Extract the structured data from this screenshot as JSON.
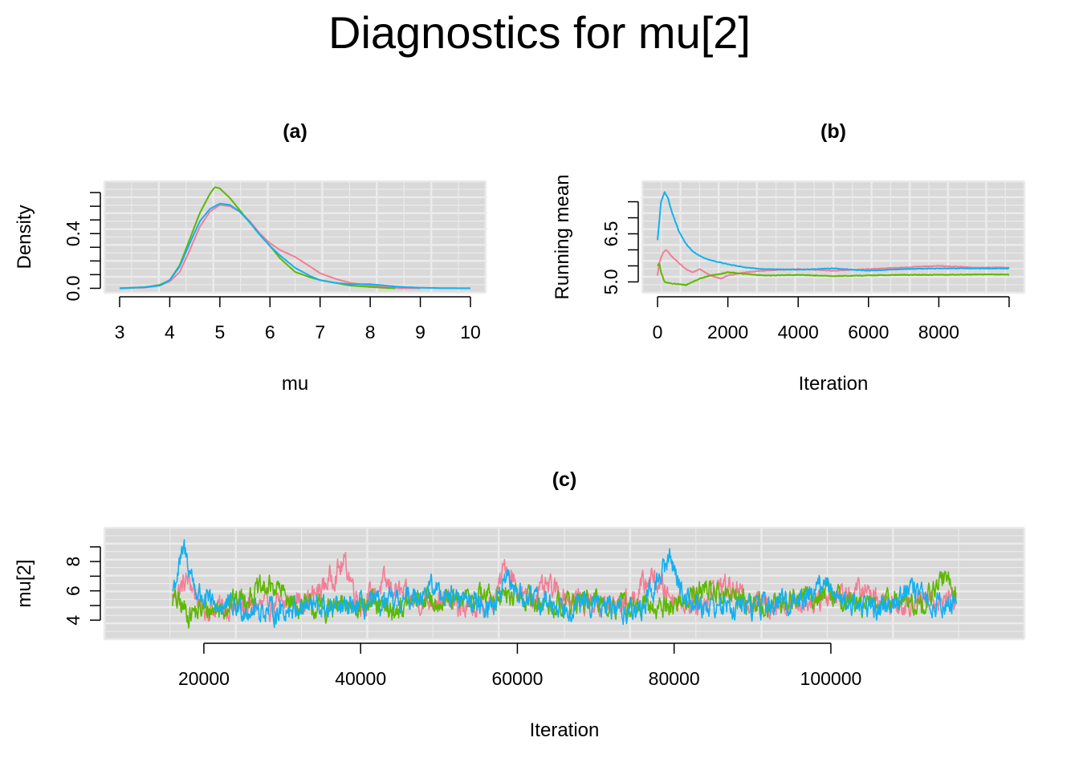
{
  "title": "Diagnostics for mu[2]",
  "colors": {
    "chain1": "#F8766D",
    "chain2": "#00BA38",
    "chain3": "#00B4F0",
    "panel_bg": "#D9D9D9",
    "grid": "#EBEBEB"
  },
  "chart_data": [
    {
      "id": "a",
      "type": "line",
      "title": "(a)",
      "xlabel": "mu",
      "ylabel": "Density",
      "xlim": [
        3,
        10
      ],
      "ylim": [
        0,
        0.75
      ],
      "x_ticks": [
        "3",
        "4",
        "5",
        "6",
        "7",
        "8",
        "9",
        "10"
      ],
      "y_ticks": [
        "0.0",
        "0.4"
      ],
      "grid": true,
      "series": [
        {
          "color": "#F47D96",
          "x": [
            3.0,
            3.5,
            3.8,
            4.0,
            4.2,
            4.4,
            4.6,
            4.8,
            5.0,
            5.2,
            5.4,
            5.6,
            5.8,
            6.0,
            6.2,
            6.5,
            6.8,
            7.0,
            7.3,
            7.6,
            8.0,
            8.3,
            8.6,
            9.0
          ],
          "y": [
            0.0,
            0.005,
            0.02,
            0.05,
            0.12,
            0.28,
            0.45,
            0.56,
            0.61,
            0.6,
            0.56,
            0.49,
            0.4,
            0.33,
            0.28,
            0.23,
            0.16,
            0.11,
            0.07,
            0.04,
            0.02,
            0.01,
            0.0,
            0.0
          ]
        },
        {
          "color": "#5DB800",
          "x": [
            3.0,
            3.5,
            3.8,
            4.0,
            4.2,
            4.4,
            4.6,
            4.8,
            4.9,
            5.0,
            5.2,
            5.4,
            5.6,
            5.8,
            6.0,
            6.2,
            6.5,
            6.8,
            7.0,
            7.3,
            7.6,
            8.0,
            8.3,
            8.5
          ],
          "y": [
            0.0,
            0.008,
            0.025,
            0.06,
            0.17,
            0.36,
            0.55,
            0.69,
            0.74,
            0.73,
            0.66,
            0.57,
            0.48,
            0.39,
            0.31,
            0.22,
            0.12,
            0.08,
            0.06,
            0.04,
            0.02,
            0.01,
            0.003,
            0.0
          ]
        },
        {
          "color": "#13B0F0",
          "x": [
            3.0,
            3.5,
            3.8,
            4.0,
            4.2,
            4.4,
            4.6,
            4.8,
            5.0,
            5.2,
            5.4,
            5.6,
            5.8,
            6.0,
            6.2,
            6.5,
            6.8,
            7.0,
            7.3,
            7.6,
            8.0,
            8.3,
            8.6,
            9.0,
            9.5,
            10.0
          ],
          "y": [
            0.0,
            0.008,
            0.02,
            0.06,
            0.16,
            0.33,
            0.49,
            0.58,
            0.62,
            0.61,
            0.56,
            0.48,
            0.39,
            0.31,
            0.24,
            0.15,
            0.09,
            0.06,
            0.04,
            0.03,
            0.03,
            0.02,
            0.01,
            0.004,
            0.001,
            0.0
          ]
        }
      ]
    },
    {
      "id": "b",
      "type": "line",
      "title": "(b)",
      "xlabel": "Iteration",
      "ylabel": "Running mean",
      "xlim": [
        0,
        10000
      ],
      "ylim": [
        4.8,
        8.0
      ],
      "x_ticks": [
        "0",
        "2000",
        "4000",
        "6000",
        "8000"
      ],
      "y_ticks": [
        "5.0",
        "6.5"
      ],
      "grid": true,
      "series": [
        {
          "color": "#F47D96",
          "x": [
            0,
            50,
            150,
            250,
            400,
            600,
            800,
            1000,
            1200,
            1500,
            1800,
            2000,
            2500,
            3000,
            4000,
            5000,
            6000,
            7000,
            8000,
            9000,
            10000
          ],
          "y": [
            5.2,
            5.6,
            5.9,
            6.0,
            5.8,
            5.6,
            5.4,
            5.3,
            5.4,
            5.2,
            5.1,
            5.2,
            5.3,
            5.35,
            5.4,
            5.35,
            5.4,
            5.45,
            5.5,
            5.45,
            5.45
          ]
        },
        {
          "color": "#5DB800",
          "x": [
            0,
            50,
            100,
            200,
            400,
            600,
            800,
            1000,
            1200,
            1500,
            1800,
            2000,
            2500,
            3000,
            4000,
            5000,
            6000,
            7000,
            8000,
            9000,
            10000
          ],
          "y": [
            5.5,
            5.6,
            5.3,
            5.0,
            4.95,
            4.93,
            4.9,
            5.0,
            5.1,
            5.2,
            5.25,
            5.3,
            5.25,
            5.2,
            5.22,
            5.18,
            5.2,
            5.22,
            5.22,
            5.23,
            5.23
          ]
        },
        {
          "color": "#13B0F0",
          "x": [
            0,
            50,
            100,
            200,
            300,
            400,
            600,
            800,
            1000,
            1300,
            1600,
            2000,
            2500,
            3000,
            4000,
            5000,
            6000,
            7000,
            8000,
            9000,
            10000
          ],
          "y": [
            6.3,
            6.9,
            7.5,
            7.8,
            7.6,
            7.2,
            6.6,
            6.2,
            5.95,
            5.75,
            5.65,
            5.55,
            5.45,
            5.4,
            5.38,
            5.42,
            5.35,
            5.4,
            5.42,
            5.42,
            5.42
          ]
        }
      ]
    },
    {
      "id": "c",
      "type": "line",
      "title": "(c)",
      "xlabel": "Iteration",
      "ylabel": "mu[2]",
      "xlim": [
        12000,
        120000
      ],
      "ylim": [
        3,
        10
      ],
      "x_ticks": [
        "20000",
        "40000",
        "60000",
        "80000",
        "100000"
      ],
      "y_ticks": [
        "4",
        "6",
        "8"
      ],
      "grid": true,
      "x_start": 16000,
      "x_end": 116000,
      "series": [
        {
          "color": "#F47D96",
          "x": [
            16000,
            18000,
            20000,
            25000,
            30000,
            34000,
            38000,
            40000,
            43000,
            47000,
            50000,
            53000,
            57000,
            58500,
            61000,
            64000,
            67000,
            72000,
            75000,
            77000,
            80000,
            83000,
            86000,
            90000,
            95000,
            100000,
            104000,
            108000,
            112000,
            116000
          ],
          "y": [
            5.5,
            6.8,
            4.8,
            4.9,
            5.0,
            5.6,
            7.9,
            5.0,
            6.5,
            5.2,
            5.5,
            4.8,
            5.0,
            7.9,
            5.3,
            6.2,
            5.5,
            4.9,
            5.6,
            7.0,
            5.5,
            5.0,
            6.5,
            5.2,
            5.1,
            5.7,
            6.0,
            5.2,
            5.3,
            5.6
          ]
        },
        {
          "color": "#5DB800",
          "x": [
            16000,
            18000,
            22000,
            26000,
            29000,
            32000,
            36000,
            40000,
            44000,
            48000,
            52000,
            56000,
            60000,
            64000,
            68000,
            72000,
            76000,
            80000,
            84000,
            88000,
            92000,
            96000,
            100000,
            104000,
            108000,
            112000,
            114500,
            116000
          ],
          "y": [
            5.5,
            4.5,
            4.8,
            5.8,
            6.3,
            5.0,
            4.7,
            5.2,
            4.6,
            5.5,
            5.2,
            5.7,
            5.6,
            5.0,
            5.3,
            5.1,
            4.8,
            5.0,
            6.2,
            5.5,
            4.9,
            5.6,
            5.8,
            4.9,
            5.3,
            5.1,
            7.0,
            5.8
          ]
        },
        {
          "color": "#13B0F0",
          "x": [
            16000,
            17500,
            19000,
            21000,
            25000,
            29000,
            33000,
            37000,
            41000,
            45000,
            49000,
            53000,
            57000,
            58800,
            61000,
            65000,
            69000,
            73000,
            76000,
            79500,
            81500,
            84000,
            88000,
            92000,
            96000,
            99000,
            102000,
            106000,
            110000,
            113000,
            116000
          ],
          "y": [
            6.0,
            8.8,
            6.0,
            5.0,
            4.8,
            4.6,
            5.0,
            4.7,
            5.0,
            5.2,
            6.2,
            5.4,
            5.0,
            6.6,
            5.4,
            5.0,
            5.1,
            4.7,
            4.8,
            8.3,
            5.4,
            5.0,
            4.9,
            5.0,
            5.4,
            6.5,
            5.3,
            4.8,
            6.0,
            5.2,
            5.0
          ]
        }
      ]
    }
  ]
}
